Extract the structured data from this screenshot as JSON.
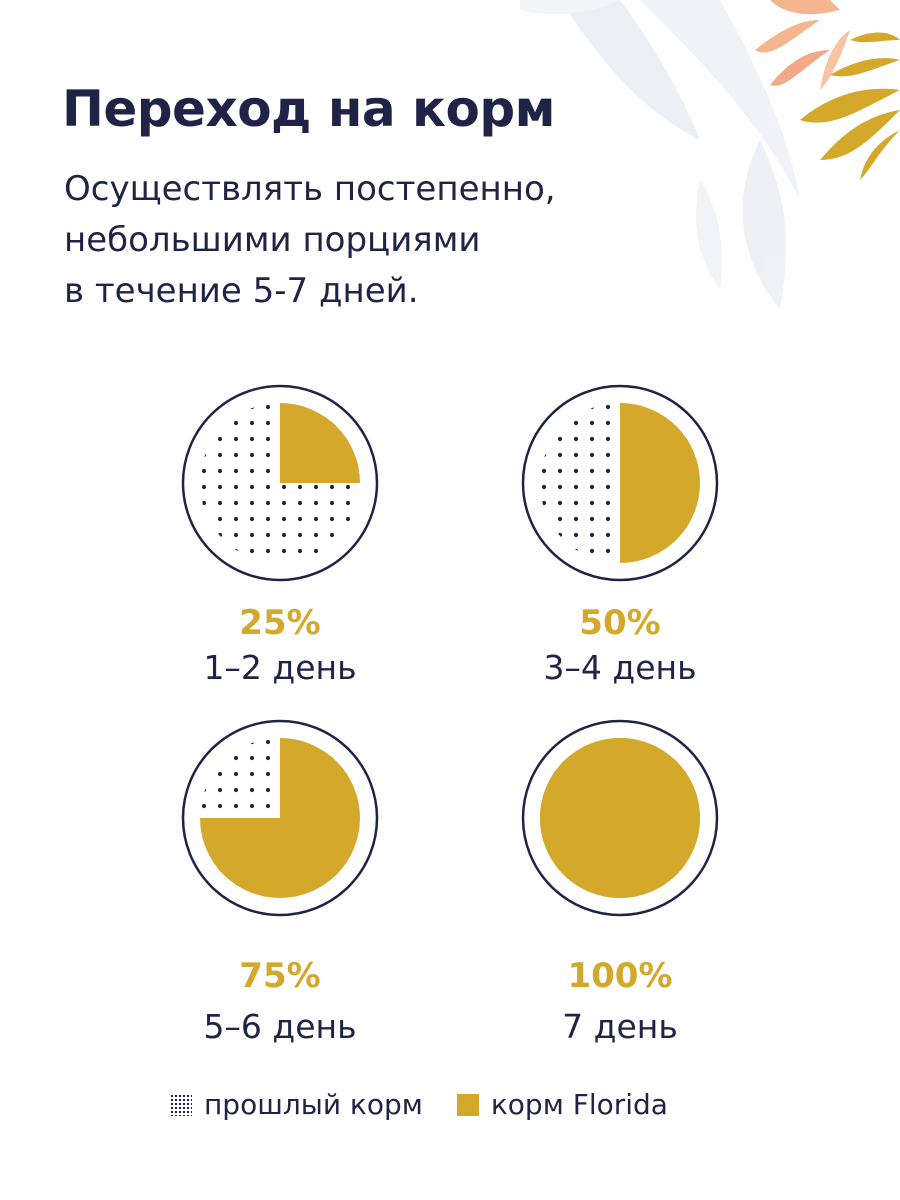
{
  "header": {
    "title": "Переход на корм",
    "subtitle_lines": [
      "Осуществлять постепенно,",
      "небольшими порциями",
      "в течение 5-7 дней."
    ]
  },
  "colors": {
    "new_food": "#d4a82a",
    "old_food_dots": "#1f2447",
    "ring": "#1f2447",
    "text": "#1f2447"
  },
  "chart_data": {
    "type": "pie",
    "series_names": [
      "прошлый корм",
      "корм Florida"
    ],
    "charts": [
      {
        "percent_label": "25%",
        "days_label": "1–2 день",
        "new_food_share": 25,
        "old_food_share": 75
      },
      {
        "percent_label": "50%",
        "days_label": "3–4 день",
        "new_food_share": 50,
        "old_food_share": 50
      },
      {
        "percent_label": "75%",
        "days_label": "5–6 день",
        "new_food_share": 75,
        "old_food_share": 25
      },
      {
        "percent_label": "100%",
        "days_label": "7 день",
        "new_food_share": 100,
        "old_food_share": 0
      }
    ]
  },
  "legend": {
    "old_food": "прошлый корм",
    "new_food": "корм Florida"
  }
}
